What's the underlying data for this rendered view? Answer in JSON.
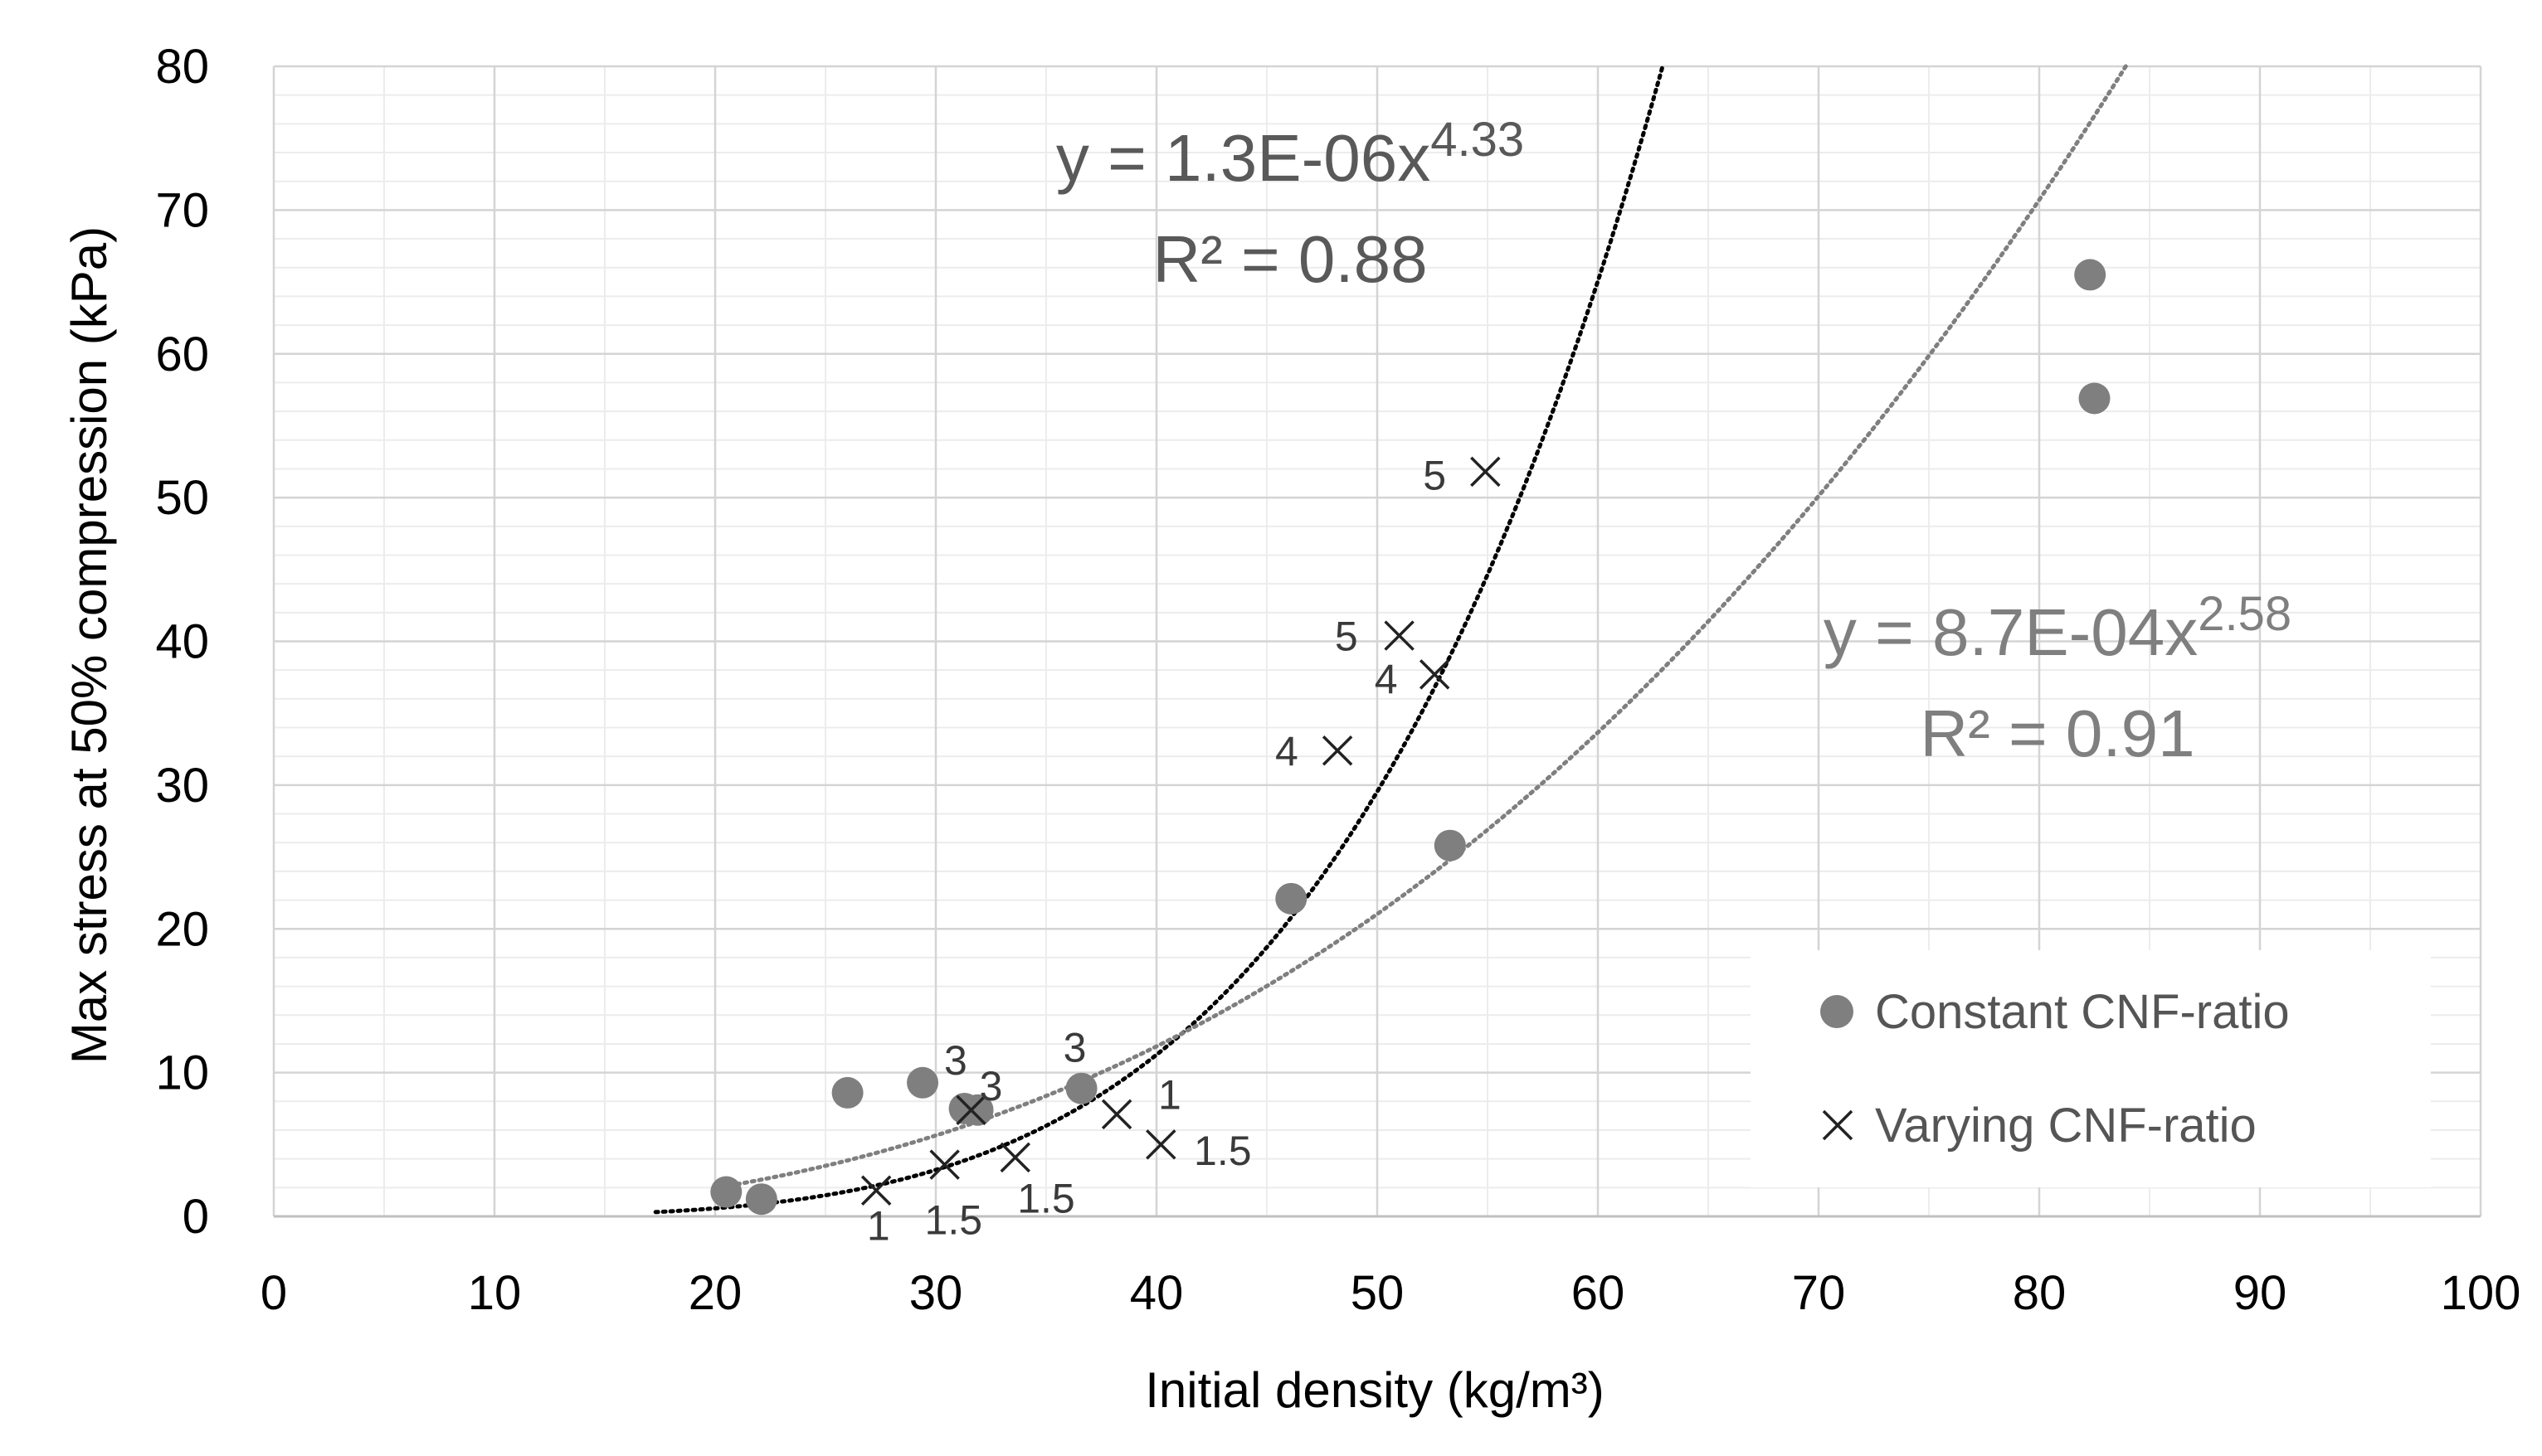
{
  "chart_data": {
    "type": "scatter",
    "xlabel": "Initial density (kg/m³)",
    "ylabel": "Max stress at 50% compression (kPa)",
    "xlim": [
      0,
      100
    ],
    "ylim": [
      0,
      80
    ],
    "xticks": [
      "0",
      "10",
      "20",
      "30",
      "40",
      "50",
      "60",
      "70",
      "80",
      "90",
      "100"
    ],
    "yticks": [
      "0",
      "10",
      "20",
      "30",
      "40",
      "50",
      "60",
      "70",
      "80"
    ],
    "grid": true,
    "minor_grid": true,
    "legend_position": "bottom-right",
    "series": [
      {
        "name": "Constant CNF-ratio",
        "marker": "circle",
        "color": "#7f7f7f",
        "points": [
          {
            "x": 20.5,
            "y": 1.7
          },
          {
            "x": 22.1,
            "y": 1.2
          },
          {
            "x": 26.0,
            "y": 8.6
          },
          {
            "x": 29.4,
            "y": 9.3
          },
          {
            "x": 31.3,
            "y": 7.5
          },
          {
            "x": 31.9,
            "y": 7.4
          },
          {
            "x": 36.6,
            "y": 8.9
          },
          {
            "x": 46.1,
            "y": 22.1
          },
          {
            "x": 53.3,
            "y": 25.8
          },
          {
            "x": 82.3,
            "y": 65.5
          },
          {
            "x": 82.5,
            "y": 56.9
          }
        ]
      },
      {
        "name": "Varying CNF-ratio",
        "marker": "x",
        "color": "#222222",
        "points": [
          {
            "x": 27.3,
            "y": 1.8
          },
          {
            "x": 30.4,
            "y": 3.6
          },
          {
            "x": 31.6,
            "y": 7.4
          },
          {
            "x": 33.6,
            "y": 4.1
          },
          {
            "x": 38.2,
            "y": 7.1
          },
          {
            "x": 40.2,
            "y": 5.0
          },
          {
            "x": 48.2,
            "y": 32.4
          },
          {
            "x": 51.0,
            "y": 40.4
          },
          {
            "x": 52.6,
            "y": 37.7
          },
          {
            "x": 54.9,
            "y": 51.8
          }
        ]
      }
    ],
    "point_labels": [
      {
        "text": "3",
        "x": 30.9,
        "y": 10.9
      },
      {
        "text": "3",
        "x": 32.5,
        "y": 9.1
      },
      {
        "text": "3",
        "x": 36.3,
        "y": 11.8
      },
      {
        "text": "1",
        "x": 40.6,
        "y": 8.5
      },
      {
        "text": "1.5",
        "x": 43.0,
        "y": 4.6
      },
      {
        "text": "1",
        "x": 27.4,
        "y": -0.6
      },
      {
        "text": "1.5",
        "x": 30.8,
        "y": -0.2
      },
      {
        "text": "1.5",
        "x": 35.0,
        "y": 1.3
      },
      {
        "text": "4",
        "x": 45.9,
        "y": 32.4
      },
      {
        "text": "4",
        "x": 50.4,
        "y": 37.4
      },
      {
        "text": "5",
        "x": 48.6,
        "y": 40.4
      },
      {
        "text": "5",
        "x": 52.6,
        "y": 51.6
      }
    ],
    "trendlines": [
      {
        "type": "power",
        "color": "#000000",
        "a": 1.3e-06,
        "b": 4.33,
        "x_start": 17.3,
        "equation_base": "y = 1.3E-06x",
        "equation_exp": "4.33",
        "r2_label": "R² = 0.88",
        "label_color": "#595959"
      },
      {
        "type": "power",
        "color": "#7f7f7f",
        "a": 0.00087,
        "b": 2.58,
        "x_start": 21.0,
        "equation_base": "y = 8.7E-04x",
        "equation_exp": "2.58",
        "r2_label": "R² = 0.91",
        "label_color": "#7f7f7f"
      }
    ]
  }
}
